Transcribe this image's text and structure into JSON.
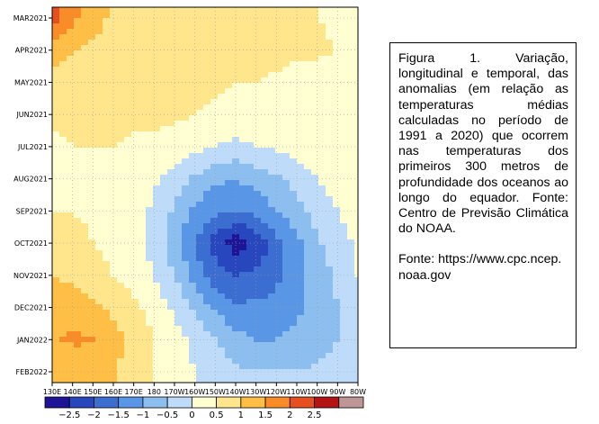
{
  "chart_data": {
    "type": "heatmap",
    "title": "",
    "xlabel": "",
    "ylabel": "",
    "x_ticks": [
      "130E",
      "140E",
      "150E",
      "160E",
      "170E",
      "180",
      "170W",
      "160W",
      "150W",
      "140W",
      "130W",
      "120W",
      "110W",
      "100W",
      "90W",
      "80W"
    ],
    "y_ticks": [
      "MAR2021",
      "APR2021",
      "MAY2021",
      "JUN2021",
      "JUL2021",
      "AUG2021",
      "SEP2021",
      "OCT2021",
      "NOV2021",
      "DEC2021",
      "JAN2022",
      "FEB2022"
    ],
    "x_range_deg_east": [
      130,
      280
    ],
    "colorbar": {
      "labels": [
        "−2.5",
        "−2",
        "−1.5",
        "−1",
        "−0.5",
        "0",
        "0.5",
        "1",
        "1.5",
        "2",
        "2.5"
      ],
      "boundaries": [
        -3,
        -2.5,
        -2,
        -1.5,
        -1,
        -0.5,
        0,
        0.5,
        1,
        1.5,
        2,
        2.5,
        3
      ],
      "colors": [
        "#1e1496",
        "#2846be",
        "#3c6ed2",
        "#5a96e6",
        "#8cbef0",
        "#bedcfa",
        "#ffffd2",
        "#ffe68c",
        "#ffbe46",
        "#fa8c28",
        "#e6501e",
        "#b41414",
        "#be9696"
      ]
    },
    "anomaly_grid_description_rows": [
      {
        "month": "MAR2021",
        "values": [
          2.2,
          1.6,
          1.2,
          0.9,
          0.8,
          0.7,
          0.6,
          0.8,
          0.9,
          0.7,
          0.6,
          0.6,
          0.6,
          0.5,
          0.4,
          0.3
        ]
      },
      {
        "month": "APR2021",
        "values": [
          1.2,
          1.0,
          0.9,
          0.8,
          0.7,
          0.6,
          0.8,
          0.9,
          0.8,
          0.7,
          0.7,
          0.7,
          0.6,
          0.6,
          0.5,
          0.4
        ]
      },
      {
        "month": "MAY2021",
        "values": [
          0.8,
          0.8,
          0.7,
          0.6,
          0.5,
          0.5,
          0.6,
          0.6,
          0.6,
          0.5,
          0.5,
          0.4,
          0.3,
          0.3,
          0.2,
          0.2
        ]
      },
      {
        "month": "JUN2021",
        "values": [
          0.6,
          0.6,
          0.7,
          0.7,
          0.6,
          0.6,
          0.6,
          0.5,
          0.4,
          0.3,
          0.3,
          0.4,
          0.5,
          0.5,
          0.4,
          0.3
        ]
      },
      {
        "month": "JUL2021",
        "values": [
          0.4,
          0.5,
          0.5,
          0.5,
          0.4,
          0.4,
          0.3,
          0.2,
          0.0,
          -0.1,
          0.0,
          0.1,
          0.2,
          0.3,
          0.3,
          0.3
        ]
      },
      {
        "month": "AUG2021",
        "values": [
          0.3,
          0.3,
          0.3,
          0.3,
          0.2,
          0.1,
          -0.2,
          -0.6,
          -0.9,
          -1.0,
          -0.8,
          -0.6,
          -0.3,
          0.0,
          0.2,
          0.3
        ]
      },
      {
        "month": "SEP2021",
        "values": [
          0.5,
          0.5,
          0.4,
          0.3,
          0.2,
          -0.1,
          -0.6,
          -1.1,
          -1.4,
          -1.5,
          -1.3,
          -1.0,
          -0.7,
          -0.3,
          0.0,
          0.2
        ]
      },
      {
        "month": "OCT2021",
        "values": [
          0.8,
          0.7,
          0.5,
          0.4,
          0.2,
          -0.2,
          -0.8,
          -1.5,
          -2.2,
          -2.8,
          -2.4,
          -1.7,
          -1.1,
          -0.6,
          -0.2,
          0.1
        ]
      },
      {
        "month": "NOV2021",
        "values": [
          1.0,
          0.9,
          0.7,
          0.5,
          0.3,
          0.0,
          -0.5,
          -1.2,
          -1.8,
          -2.0,
          -1.9,
          -1.6,
          -1.2,
          -0.8,
          -0.4,
          0.0
        ]
      },
      {
        "month": "DEC2021",
        "values": [
          1.3,
          1.3,
          1.1,
          0.9,
          0.6,
          0.3,
          -0.1,
          -0.6,
          -1.1,
          -1.4,
          -1.4,
          -1.3,
          -1.1,
          -0.8,
          -0.5,
          -0.2
        ]
      },
      {
        "month": "JAN2022",
        "values": [
          1.4,
          1.6,
          1.5,
          1.2,
          0.9,
          0.5,
          0.2,
          -0.1,
          -0.5,
          -0.8,
          -1.0,
          -1.0,
          -0.9,
          -0.7,
          -0.5,
          -0.3
        ]
      },
      {
        "month": "FEB2022",
        "values": [
          1.0,
          1.1,
          1.1,
          1.0,
          0.8,
          0.5,
          0.2,
          0.0,
          -0.2,
          -0.4,
          -0.5,
          -0.5,
          -0.5,
          -0.4,
          -0.3,
          -0.2
        ]
      }
    ]
  },
  "caption": {
    "text": "Figura 1. Variação, longitudinal e temporal, das anomalias (em relação as temperaturas médias calculadas no período de 1991 a 2020) que ocorrem nas temperaturas dos primeiros 300 metros de profundidade dos oceanos ao longo do equador. Fonte: Centro de Previsão Climática do NOAA.",
    "source": "Fonte: https://www.cpc.ncep.noaa.gov"
  }
}
